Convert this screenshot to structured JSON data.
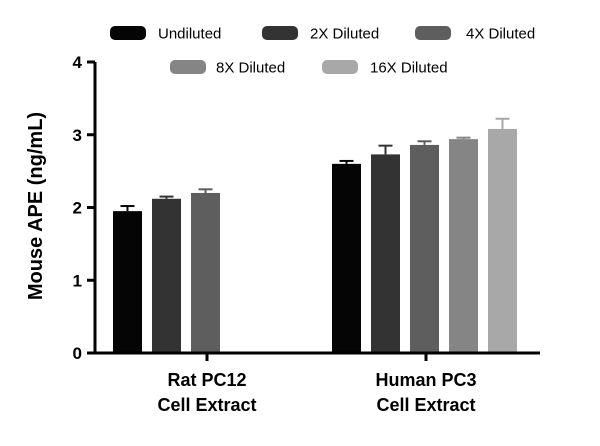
{
  "chart_data": {
    "type": "bar",
    "ylabel": "Mouse APE (ng/mL)",
    "xlabel": "",
    "ylim": [
      0,
      4
    ],
    "yticks": [
      "0",
      "1",
      "2",
      "3",
      "4"
    ],
    "categories": [
      {
        "line1": "Rat PC12",
        "line2": "Cell Extract"
      },
      {
        "line1": "Human PC3",
        "line2": "Cell Extract"
      }
    ],
    "series": [
      {
        "name": "Undiluted",
        "color": "#050505",
        "values": [
          1.95,
          2.6
        ],
        "errors": [
          0.07,
          0.04
        ]
      },
      {
        "name": "2X Diluted",
        "color": "#333333",
        "values": [
          2.12,
          2.73
        ],
        "errors": [
          0.03,
          0.12
        ]
      },
      {
        "name": "4X Diluted",
        "color": "#5e5e5e",
        "values": [
          2.2,
          2.86
        ],
        "errors": [
          0.05,
          0.05
        ]
      },
      {
        "name": "8X Diluted",
        "color": "#858585",
        "values": [
          null,
          2.94
        ],
        "errors": [
          null,
          0.02
        ]
      },
      {
        "name": "16X Diluted",
        "color": "#a8a8a8",
        "values": [
          null,
          3.08
        ],
        "errors": [
          null,
          0.14
        ]
      }
    ],
    "grid": false,
    "legend_position": "top"
  }
}
